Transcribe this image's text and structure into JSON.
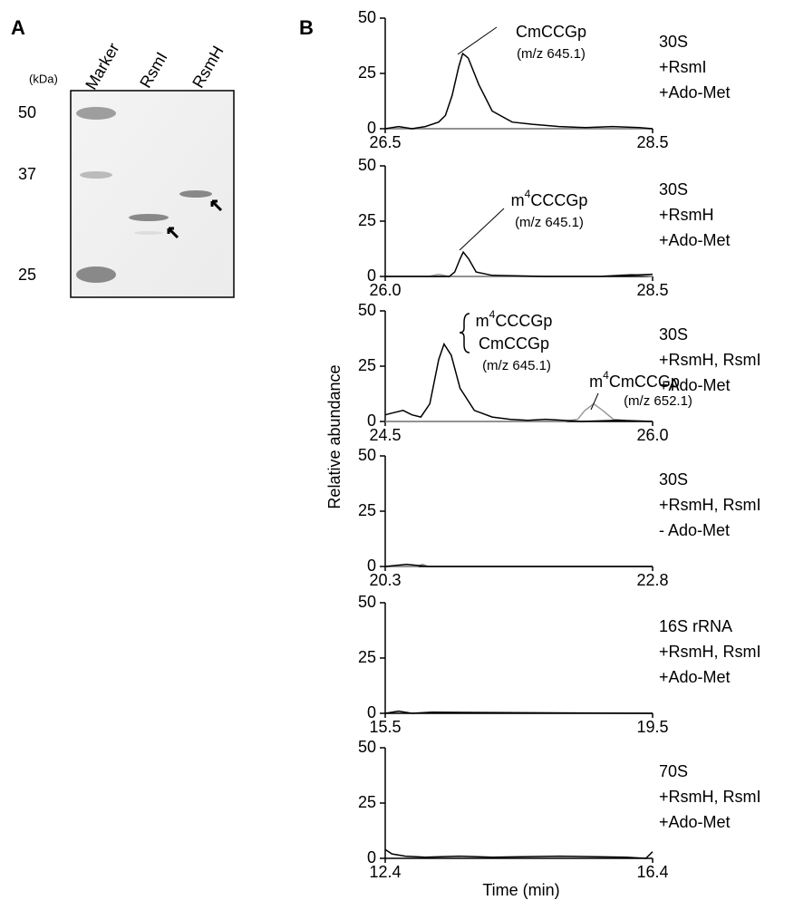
{
  "figure": {
    "panel_a": "A",
    "panel_b": "B",
    "y_label": "Relative abundance",
    "x_label": "Time (min)"
  },
  "gel": {
    "unit": "(kDa)",
    "lanes": [
      "Marker",
      "RsmI",
      "RsmH"
    ],
    "markers": [
      50,
      37,
      25
    ]
  },
  "chart_data": [
    {
      "type": "line",
      "xlim": [
        26.5,
        28.5
      ],
      "ylim": [
        0,
        50
      ],
      "xticks": [
        26.5,
        28.5
      ],
      "yticks": [
        0,
        25,
        50
      ],
      "conditions": [
        "30S",
        "+RsmI",
        "+Ado-Met"
      ],
      "annotations": [
        "CmCCGp",
        "(m/z 645.1)"
      ],
      "series": [
        {
          "color": "#000000",
          "x": [
            26.5,
            26.6,
            26.7,
            26.8,
            26.9,
            26.95,
            27.0,
            27.05,
            27.08,
            27.12,
            27.2,
            27.3,
            27.45,
            27.6,
            27.8,
            28.0,
            28.2,
            28.4,
            28.5
          ],
          "values": [
            0,
            1,
            0,
            1,
            3,
            6,
            15,
            28,
            34,
            32,
            20,
            8,
            3,
            2,
            1,
            0.5,
            1,
            0.5,
            0
          ]
        },
        {
          "color": "#999999",
          "x": [
            26.5,
            28.5
          ],
          "values": [
            0,
            0
          ]
        }
      ]
    },
    {
      "type": "line",
      "xlim": [
        26,
        28.5
      ],
      "ylim": [
        0,
        50
      ],
      "xticks": [
        {
          "value": 26,
          "label": "26.0"
        },
        28.5
      ],
      "yticks": [
        0,
        25,
        50
      ],
      "conditions": [
        "30S",
        "+RsmH",
        "+Ado-Met"
      ],
      "annotations": [
        "m4CCCGp",
        "(m/z 645.1)"
      ],
      "series": [
        {
          "color": "#000000",
          "x": [
            26.0,
            26.3,
            26.6,
            26.65,
            26.7,
            26.73,
            26.78,
            26.85,
            27.0,
            27.5,
            28.0,
            28.5
          ],
          "values": [
            0,
            0,
            0,
            2,
            8,
            11,
            8,
            2,
            0.5,
            0,
            0,
            1
          ]
        },
        {
          "color": "#999999",
          "x": [
            26.0,
            26.4,
            26.5,
            26.6,
            27.5,
            28.0,
            28.3,
            28.5
          ],
          "values": [
            0,
            0,
            1,
            0,
            0,
            0,
            1,
            0
          ]
        }
      ]
    },
    {
      "type": "line",
      "xlim": [
        24.5,
        26
      ],
      "ylim": [
        0,
        50
      ],
      "xticks": [
        24.5,
        {
          "value": 26,
          "label": "26.0"
        }
      ],
      "yticks": [
        0,
        25,
        50
      ],
      "conditions": [
        "30S",
        "+RsmH, RsmI",
        "+Ado-Met"
      ],
      "annotations": [
        "m4CCCGp",
        "CmCCGp",
        "(m/z 645.1)",
        "m4CmCCGp",
        "(m/z 652.1)"
      ],
      "series": [
        {
          "color": "#000000",
          "x": [
            24.5,
            24.55,
            24.6,
            24.65,
            24.7,
            24.75,
            24.8,
            24.83,
            24.87,
            24.92,
            25.0,
            25.1,
            25.2,
            25.3,
            25.4,
            25.5,
            25.6,
            25.8,
            26.0
          ],
          "values": [
            3,
            4,
            5,
            3,
            2,
            8,
            28,
            35,
            30,
            15,
            5,
            2,
            1,
            0.5,
            1,
            0.5,
            0,
            0.5,
            0
          ]
        },
        {
          "color": "#999999",
          "x": [
            24.5,
            25.5,
            25.58,
            25.62,
            25.67,
            25.72,
            25.78,
            25.85,
            26.0
          ],
          "values": [
            0,
            0,
            1,
            5,
            8,
            5,
            1,
            0.5,
            0
          ]
        }
      ]
    },
    {
      "type": "line",
      "xlim": [
        20.3,
        22.8
      ],
      "ylim": [
        0,
        50
      ],
      "xticks": [
        20.3,
        22.8
      ],
      "yticks": [
        0,
        25,
        50
      ],
      "conditions": [
        "30S",
        "+RsmH, RsmI",
        "- Ado-Met"
      ],
      "series": [
        {
          "color": "#000000",
          "x": [
            20.3,
            20.5,
            20.7,
            22.8
          ],
          "values": [
            0,
            1,
            0,
            0
          ]
        },
        {
          "color": "#999999",
          "x": [
            20.3,
            20.6,
            20.65,
            20.7,
            22.8
          ],
          "values": [
            0,
            0,
            1,
            0,
            0
          ]
        }
      ]
    },
    {
      "type": "line",
      "xlim": [
        15.5,
        19.5
      ],
      "ylim": [
        0,
        50
      ],
      "xticks": [
        15.5,
        19.5
      ],
      "yticks": [
        0,
        25,
        50
      ],
      "conditions": [
        "16S rRNA",
        "+RsmH, RsmI",
        "+Ado-Met"
      ],
      "series": [
        {
          "color": "#000000",
          "x": [
            15.5,
            15.7,
            15.9,
            16.2,
            19.5
          ],
          "values": [
            0,
            1,
            0,
            0.5,
            0
          ]
        }
      ]
    },
    {
      "type": "line",
      "xlim": [
        12.4,
        16.4
      ],
      "ylim": [
        0,
        50
      ],
      "xticks": [
        12.4,
        16.4
      ],
      "yticks": [
        0,
        25,
        50
      ],
      "conditions": [
        "70S",
        "+RsmH, RsmI",
        "+Ado-Met"
      ],
      "series": [
        {
          "color": "#000000",
          "x": [
            12.4,
            12.5,
            12.7,
            13.0,
            13.5,
            14.0,
            15.0,
            16.0,
            16.3,
            16.4
          ],
          "values": [
            4,
            2,
            1,
            0.5,
            1,
            0.5,
            1,
            0.5,
            0,
            3
          ]
        }
      ]
    }
  ]
}
